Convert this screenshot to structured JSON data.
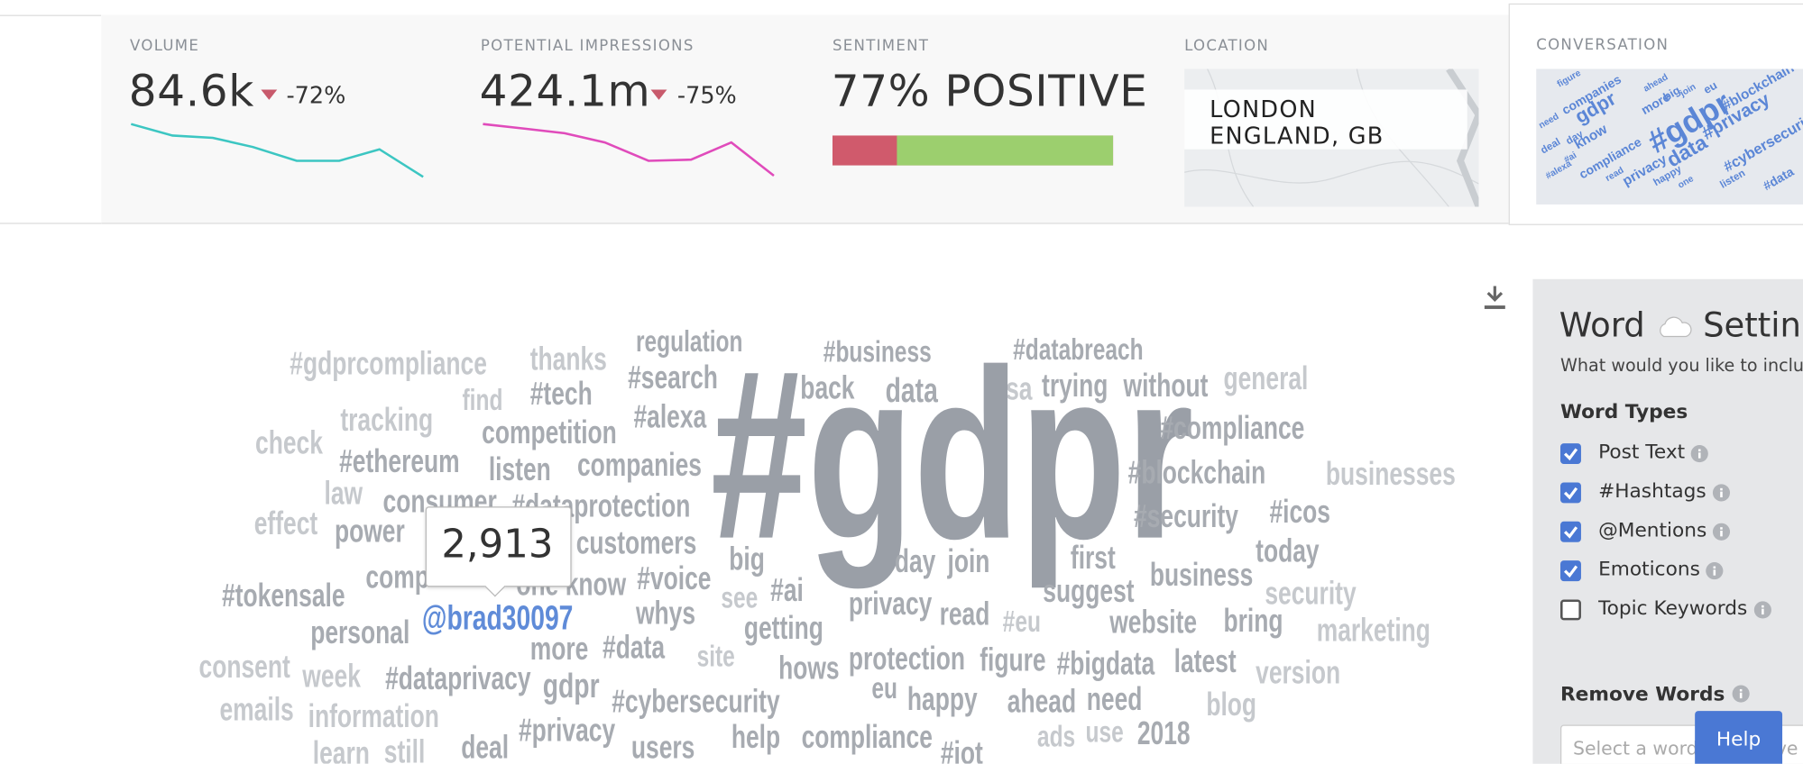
{
  "stats": [
    {
      "label": "VOLUME",
      "value": "84.6k",
      "change": "-72%"
    },
    {
      "label": "POTENTIAL IMPRESSIONS",
      "value": "424.1m",
      "change": "-75%"
    }
  ],
  "sentiment": {
    "label": "SENTIMENT",
    "text": "77% POSITIVE",
    "positive": 77
  },
  "location": {
    "label": "LOCATION",
    "lines": [
      "LONDON",
      "ENGLAND, GB"
    ]
  },
  "conversation": {
    "label": "CONVERSATION",
    "words": [
      "figure",
      "companies",
      "gdpr",
      "ahead",
      "more",
      "big",
      "join",
      "eu",
      "#blockchain",
      "need",
      "day",
      "know",
      "#gdpr",
      "#privacy",
      "deal",
      "#ai",
      "data",
      "#cybersecurity",
      "compliance",
      "privacy",
      "#alexa",
      "read",
      "happy",
      "one",
      "listen",
      "#data"
    ]
  },
  "word_cloud": {
    "tooltip": "2,913",
    "words": [
      "#gdprcompliance",
      "thanks",
      "regulation",
      "#business",
      "#databreach",
      "#search",
      "#tech",
      "find",
      "tracking",
      "back",
      "data",
      "usa",
      "trying",
      "without",
      "general",
      "#gdpr",
      "#alexa",
      "competition",
      "check",
      "#compliance",
      "#ethereum",
      "listen",
      "companies",
      "#blockchain",
      "businesses",
      "law",
      "consumer",
      "#dataprotection",
      "#security",
      "#icos",
      "effect",
      "power",
      "customers",
      "today",
      "big",
      "day",
      "join",
      "first",
      "comp",
      "one know",
      "#voice",
      "business",
      "#tokensale",
      "see",
      "#ai",
      "whys",
      "privacy",
      "read",
      "suggest",
      "security",
      "#eu",
      "website",
      "bring",
      "personal",
      "@brad30097",
      "getting",
      "marketing",
      "more",
      "#data",
      "site",
      "hows",
      "protection",
      "figure",
      "#bigdata",
      "latest",
      "consent",
      "week",
      "#dataprivacy",
      "gdpr",
      "version",
      "eu",
      "happy",
      "ahead",
      "need",
      "blog",
      "#cybersecurity",
      "emails",
      "information",
      "#privacy",
      "help",
      "compliance",
      "ads",
      "use",
      "2018",
      "users",
      "deal",
      "learn",
      "still",
      "#iot"
    ]
  },
  "settings": {
    "title": "Word",
    "title_rest": "Settings",
    "subtitle": "What would you like to include?",
    "word_types_label": "Word Types",
    "word_types": [
      {
        "label": "Post Text",
        "checked": true
      },
      {
        "label": "#Hashtags",
        "checked": true
      },
      {
        "label": "@Mentions",
        "checked": true
      },
      {
        "label": "Emoticons",
        "checked": true
      },
      {
        "label": "Topic Keywords",
        "checked": false
      }
    ],
    "remove_words_label": "Remove Words",
    "placeholder": "Select a word to remove"
  },
  "help": "Help"
}
